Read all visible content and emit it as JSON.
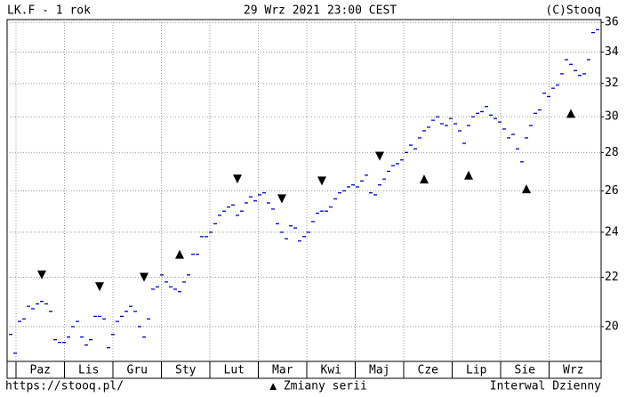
{
  "chart_data": {
    "type": "scatter",
    "title": "LK.F - 1 rok",
    "date": "29 Wrz 2021 23:00 CEST",
    "copyright": "(C)Stooq",
    "source": "https://stooq.pl/",
    "legend": "▲ Zmiany serii",
    "interval": "Interwal Dzienny",
    "categories": [
      "Paz",
      "Lis",
      "Gru",
      "Sty",
      "Lut",
      "Mar",
      "Kwi",
      "Maj",
      "Cze",
      "Lip",
      "Sie",
      "Wrz"
    ],
    "log_scale": true,
    "grid": true,
    "ylim": [
      18.7,
      36.2
    ],
    "yticks": [
      20,
      22,
      24,
      26,
      28,
      30,
      32,
      34,
      36
    ],
    "series": [
      {
        "name": "LK.F",
        "color": "#0000cc",
        "values": [
          19.7,
          19.0,
          20.2,
          20.3,
          20.8,
          20.7,
          20.9,
          21.0,
          20.9,
          20.6,
          19.5,
          19.4,
          19.4,
          19.6,
          20.0,
          20.2,
          19.6,
          19.3,
          19.5,
          20.4,
          20.4,
          20.3,
          19.2,
          19.7,
          20.2,
          20.4,
          20.6,
          20.8,
          20.6,
          20.0,
          19.6,
          20.3,
          21.5,
          21.6,
          22.1,
          21.8,
          21.6,
          21.5,
          21.4,
          21.8,
          22.1,
          23.0,
          23.0,
          23.8,
          23.8,
          24.0,
          24.4,
          24.8,
          25.0,
          25.2,
          25.3,
          24.8,
          25.0,
          25.4,
          25.7,
          25.5,
          25.8,
          25.9,
          25.4,
          25.1,
          24.4,
          24.0,
          23.7,
          24.3,
          24.2,
          23.6,
          23.8,
          24.0,
          24.5,
          24.9,
          25.0,
          25.0,
          25.2,
          25.6,
          25.9,
          26.0,
          26.2,
          26.3,
          26.2,
          26.5,
          26.8,
          25.9,
          25.8,
          26.3,
          26.6,
          27.0,
          27.3,
          27.4,
          27.6,
          28.0,
          28.4,
          28.2,
          28.8,
          29.2,
          29.4,
          29.8,
          30.0,
          29.6,
          29.5,
          29.9,
          29.6,
          29.2,
          28.5,
          29.5,
          30.0,
          30.2,
          30.3,
          30.6,
          30.1,
          29.9,
          29.7,
          29.3,
          28.8,
          29.0,
          28.2,
          27.5,
          28.8,
          29.5,
          30.2,
          30.4,
          31.4,
          31.2,
          31.7,
          31.9,
          32.6,
          33.5,
          33.2,
          32.8,
          32.5,
          32.6,
          33.5,
          35.3,
          35.5
        ]
      }
    ],
    "markers": [
      {
        "index": 7,
        "value": 22.1,
        "direction": "down"
      },
      {
        "index": 20,
        "value": 21.6,
        "direction": "down"
      },
      {
        "index": 30,
        "value": 22.0,
        "direction": "down"
      },
      {
        "index": 38,
        "value": 23.0,
        "direction": "up"
      },
      {
        "index": 51,
        "value": 26.6,
        "direction": "down"
      },
      {
        "index": 61,
        "value": 25.6,
        "direction": "down"
      },
      {
        "index": 70,
        "value": 26.5,
        "direction": "down"
      },
      {
        "index": 83,
        "value": 27.8,
        "direction": "down"
      },
      {
        "index": 93,
        "value": 26.6,
        "direction": "up"
      },
      {
        "index": 103,
        "value": 26.8,
        "direction": "up"
      },
      {
        "index": 116,
        "value": 26.1,
        "direction": "up"
      },
      {
        "index": 126,
        "value": 30.2,
        "direction": "up"
      }
    ]
  }
}
